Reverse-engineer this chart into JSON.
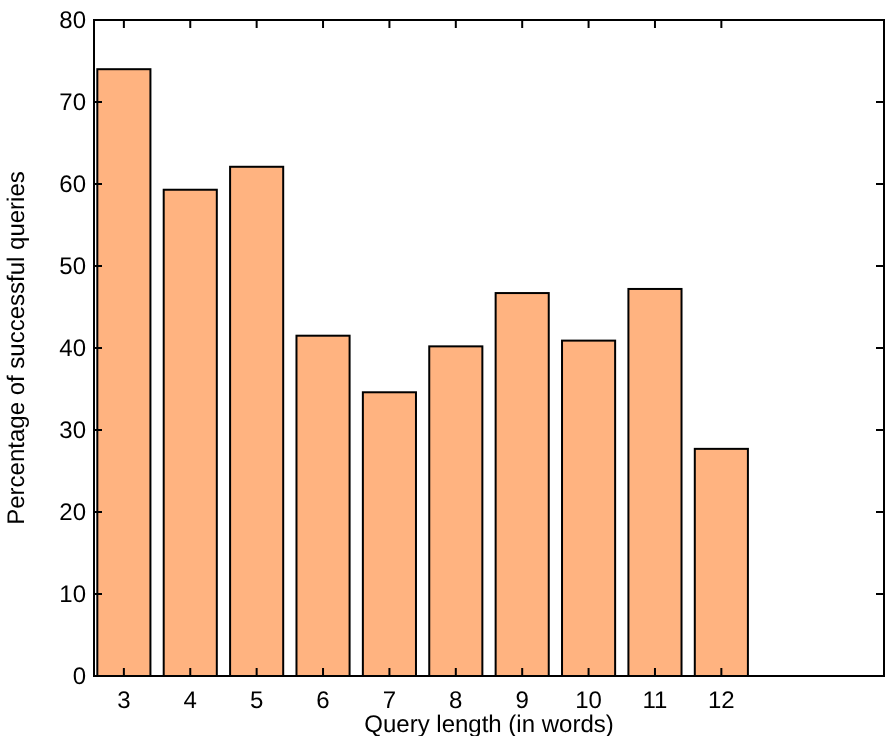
{
  "chart_data": {
    "type": "bar",
    "xlabel": "Query length (in words)",
    "ylabel": "Percentage of successful queries",
    "x": [
      3,
      4,
      5,
      6,
      7,
      8,
      9,
      10,
      11,
      12
    ],
    "values": [
      74,
      59.3,
      62.1,
      41.5,
      34.6,
      40.2,
      46.7,
      40.9,
      47.2,
      27.7
    ],
    "color": "#ffb380",
    "xlim": [
      2.55,
      14.45
    ],
    "xticks": [
      3,
      4,
      5,
      6,
      7,
      8,
      9,
      10,
      11,
      12
    ],
    "ylim": [
      0,
      80
    ],
    "yticks": [
      0,
      10,
      20,
      30,
      40,
      50,
      60,
      70,
      80
    ],
    "grid": false
  }
}
